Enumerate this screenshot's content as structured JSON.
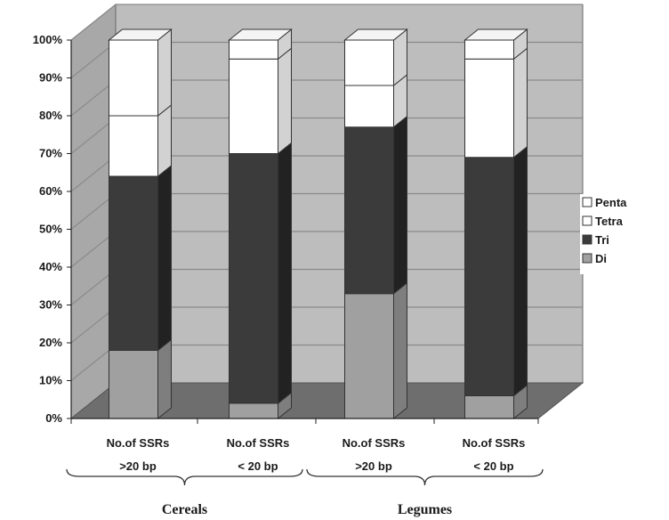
{
  "chart_data": {
    "type": "bar",
    "stacked": true,
    "percent": true,
    "three_d": true,
    "categories": [
      "No.of SSRs\n>20 bp",
      "No.of SSRs\n< 20 bp",
      "No.of SSRs\n>20 bp",
      "No.of SSRs\n< 20 bp"
    ],
    "groups": [
      {
        "label": "Cereals",
        "categories": [
          0,
          1
        ]
      },
      {
        "label": "Legumes",
        "categories": [
          2,
          3
        ]
      }
    ],
    "series": [
      {
        "name": "Di",
        "values": [
          18,
          4,
          33,
          6
        ],
        "color": "#a0a0a0",
        "side": "#7e7e7e",
        "top": "#c4c4c4"
      },
      {
        "name": "Tri",
        "values": [
          46,
          66,
          44,
          63
        ],
        "color": "#3b3b3b",
        "side": "#222222",
        "top": "#555555"
      },
      {
        "name": "Tetra",
        "values": [
          16,
          25,
          11,
          26
        ],
        "color": "#ffffff",
        "side": "#d2d2d2",
        "top": "#f4f4f4"
      },
      {
        "name": "Penta",
        "values": [
          20,
          5,
          12,
          5
        ],
        "color": "#ffffff",
        "side": "#d2d2d2",
        "top": "#f4f4f4"
      }
    ],
    "legend_order": [
      "Penta",
      "Tetra",
      "Tri",
      "Di"
    ],
    "legend_labels": {
      "Penta": "Penta",
      "Tetra": "Tetra",
      "Tri": "Tri",
      "Di": "Di"
    },
    "yticks": [
      "0%",
      "10%",
      "20%",
      "30%",
      "40%",
      "50%",
      "60%",
      "70%",
      "80%",
      "90%",
      "100%"
    ],
    "ylim": [
      0,
      100
    ],
    "grid": true,
    "legend_position": "right",
    "colors": {
      "wall": "#bdbdbd",
      "floor": "#6e6e6e",
      "gridline": "#8a8a8a"
    }
  }
}
